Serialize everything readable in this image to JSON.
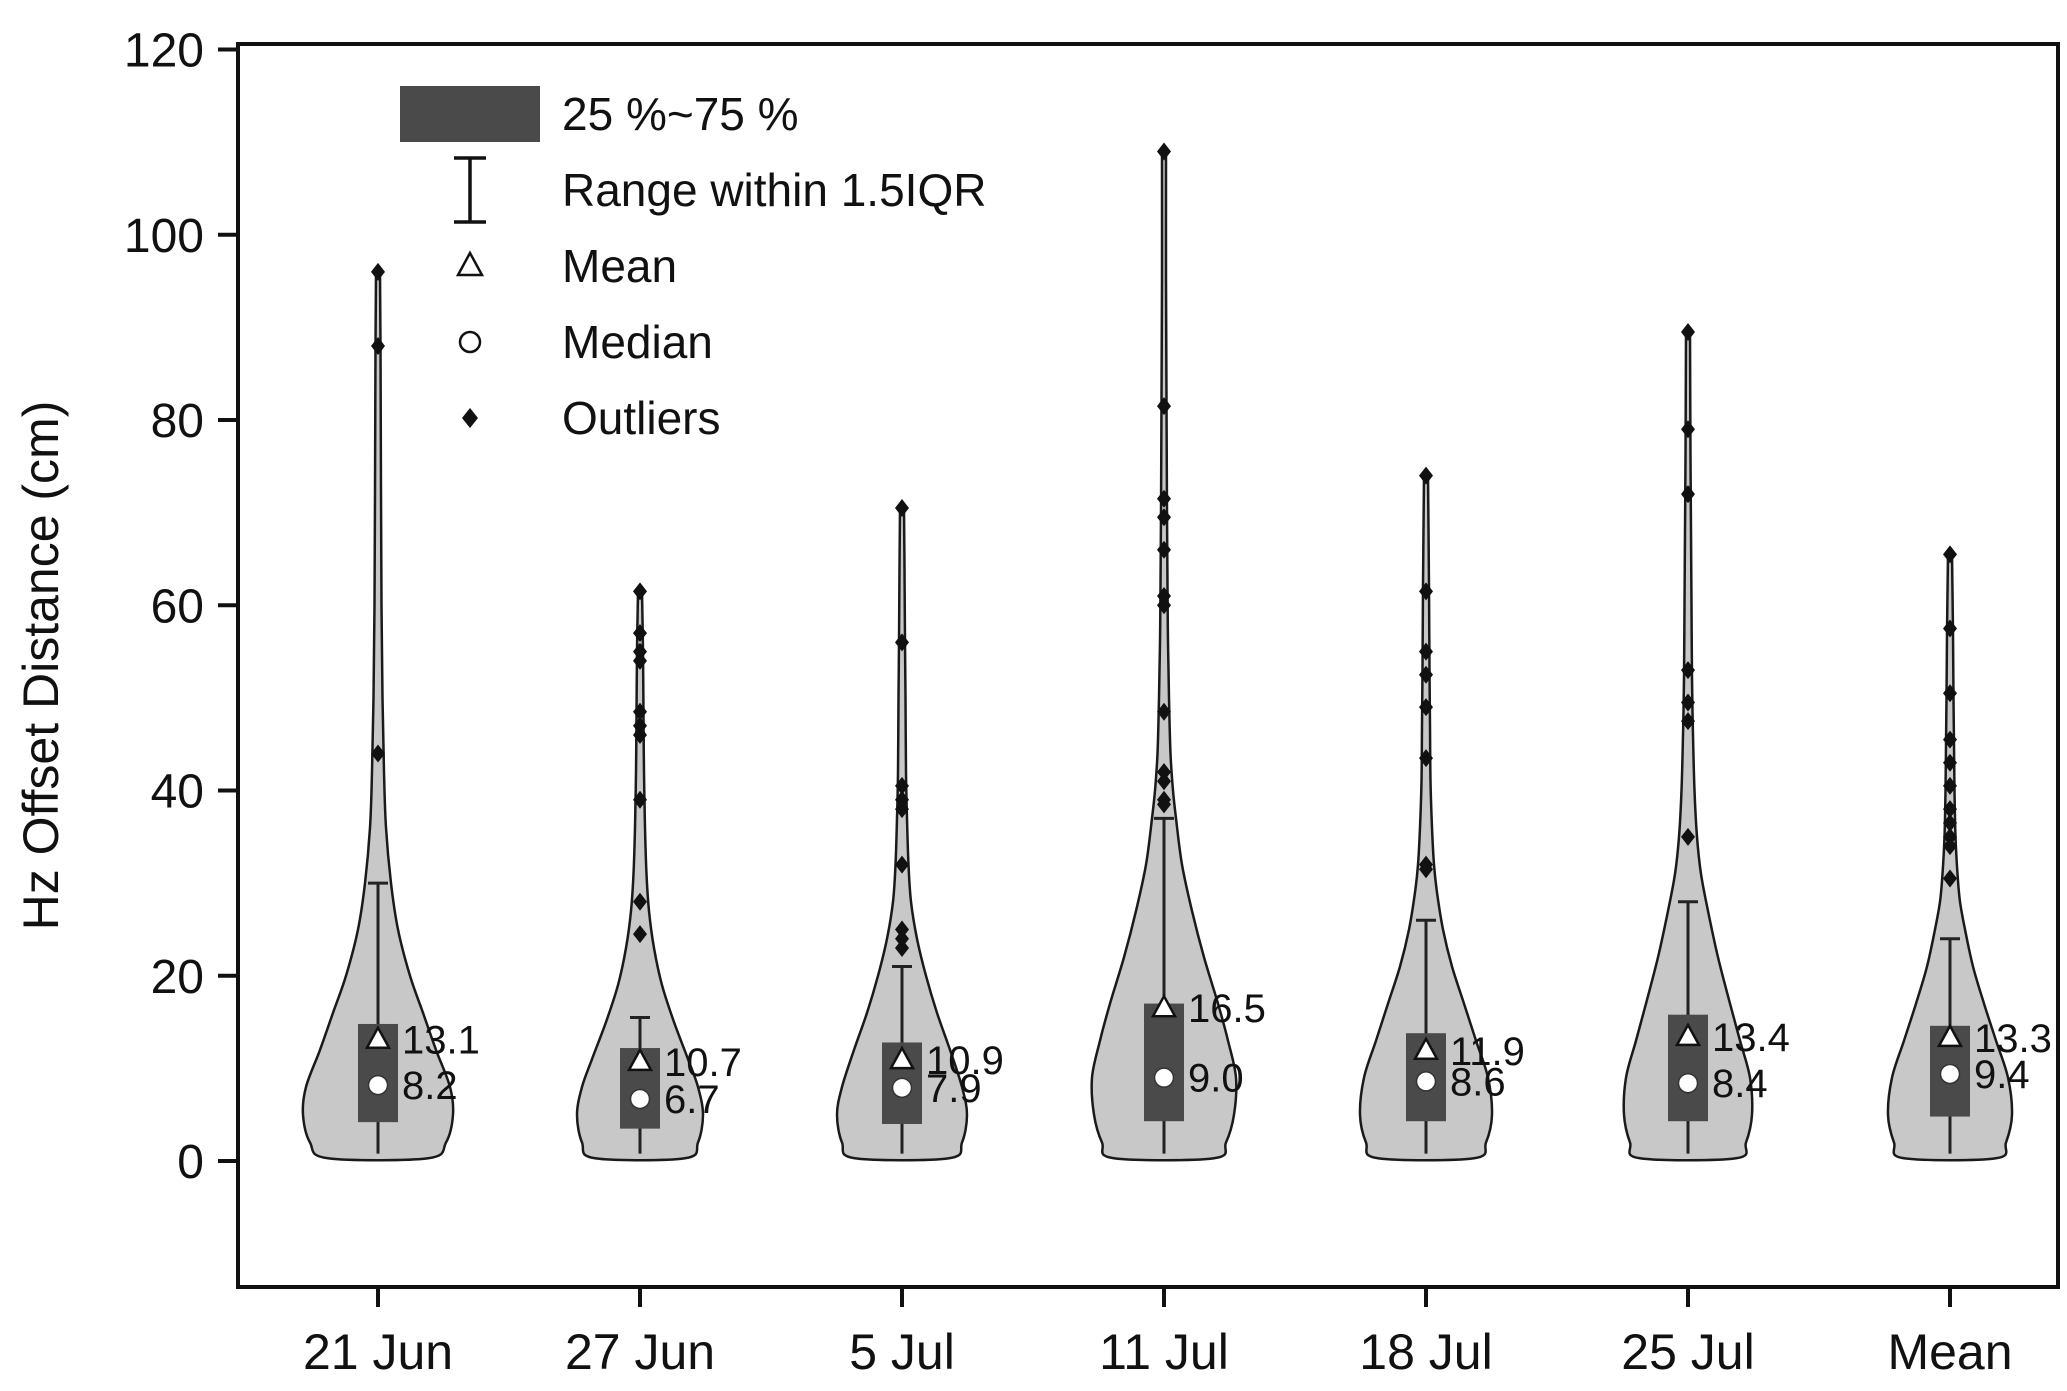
{
  "chart_data": {
    "type": "violin",
    "title": "",
    "ylabel": "Hz Offset Distance (cm)",
    "xlabel": "",
    "y_ticks": [
      0,
      20,
      40,
      60,
      80,
      100,
      120
    ],
    "y_range": [
      -13.6,
      120.6
    ],
    "grid": false,
    "legend_position": "top-left-inside",
    "categories": [
      "21 Jun",
      "27 Jun",
      "5 Jul",
      "11 Jul",
      "18 Jul",
      "25 Jul",
      "Mean"
    ],
    "legend": [
      {
        "glyph": "box",
        "label": "25 %~75 %"
      },
      {
        "glyph": "errorbar",
        "label": "Range within 1.5IQR"
      },
      {
        "glyph": "triangle",
        "label": "Mean"
      },
      {
        "glyph": "circle",
        "label": "Median"
      },
      {
        "glyph": "diamond",
        "label": "Outliers"
      }
    ],
    "colors": {
      "violin_fill": "#c8c8c8",
      "violin_stroke": "#1a1a1a",
      "box_fill": "#4a4a4a",
      "outlier": "#111111",
      "median_fill": "#ffffff",
      "mean_fill": "#ffffff"
    },
    "series": [
      {
        "category": "21 Jun",
        "mean": 13.1,
        "mean_label": "13.1",
        "median": 8.2,
        "median_label": "8.2",
        "q1": 4.2,
        "q3": 14.8,
        "whisker_low": 0.8,
        "whisker_high": 30,
        "outliers": [
          96,
          88,
          44
        ],
        "profile": [
          [
            0.3,
            50
          ],
          [
            2,
            68
          ],
          [
            5,
            75
          ],
          [
            8,
            72
          ],
          [
            12,
            58
          ],
          [
            16,
            45
          ],
          [
            20,
            32
          ],
          [
            25,
            20
          ],
          [
            30,
            13
          ],
          [
            36,
            8
          ],
          [
            42,
            6
          ],
          [
            50,
            4.5
          ],
          [
            60,
            3.5
          ],
          [
            72,
            3
          ],
          [
            88,
            2.5
          ],
          [
            96,
            2
          ]
        ]
      },
      {
        "category": "27 Jun",
        "mean": 10.7,
        "mean_label": "10.7",
        "median": 6.7,
        "median_label": "6.7",
        "q1": 3.5,
        "q3": 12.2,
        "whisker_low": 0.8,
        "whisker_high": 15.5,
        "outliers": [
          61.5,
          57,
          55,
          54,
          48.5,
          47,
          46,
          39,
          28,
          24.5
        ],
        "profile": [
          [
            0.3,
            45
          ],
          [
            2,
            58
          ],
          [
            5,
            63
          ],
          [
            8,
            58
          ],
          [
            11,
            48
          ],
          [
            15,
            34
          ],
          [
            19,
            22
          ],
          [
            23,
            14
          ],
          [
            27,
            9
          ],
          [
            31,
            6.5
          ],
          [
            36,
            5
          ],
          [
            42,
            4
          ],
          [
            48,
            3.5
          ],
          [
            55,
            3
          ],
          [
            61.5,
            2
          ]
        ]
      },
      {
        "category": "5 Jul",
        "mean": 10.9,
        "mean_label": "10.9",
        "median": 7.9,
        "median_label": "7.9",
        "q1": 4.0,
        "q3": 12.8,
        "whisker_low": 0.8,
        "whisker_high": 21,
        "outliers": [
          70.5,
          56,
          40.5,
          39,
          38,
          32,
          25,
          24,
          23
        ],
        "profile": [
          [
            0.3,
            47
          ],
          [
            2,
            60
          ],
          [
            5,
            65
          ],
          [
            8,
            60
          ],
          [
            12,
            48
          ],
          [
            16,
            35
          ],
          [
            20,
            24
          ],
          [
            24,
            15
          ],
          [
            28,
            9
          ],
          [
            32,
            6.5
          ],
          [
            37,
            5
          ],
          [
            42,
            4
          ],
          [
            50,
            3.5
          ],
          [
            56,
            3
          ],
          [
            64,
            2.5
          ],
          [
            70.5,
            2
          ]
        ]
      },
      {
        "category": "11 Jul",
        "mean": 16.5,
        "mean_label": "16.5",
        "median": 9.0,
        "median_label": "9.0",
        "q1": 4.3,
        "q3": 17.0,
        "whisker_low": 0.8,
        "whisker_high": 37,
        "outliers": [
          109,
          81.5,
          71.5,
          69.5,
          66,
          61,
          60,
          48.5,
          42,
          41,
          39,
          38.5
        ],
        "profile": [
          [
            0.3,
            50
          ],
          [
            2,
            62
          ],
          [
            5,
            70
          ],
          [
            9,
            72
          ],
          [
            13,
            64
          ],
          [
            17,
            54
          ],
          [
            22,
            40
          ],
          [
            27,
            28
          ],
          [
            32,
            18
          ],
          [
            37,
            12
          ],
          [
            40,
            9
          ],
          [
            44,
            6.5
          ],
          [
            50,
            5
          ],
          [
            56,
            4
          ],
          [
            62,
            3.5
          ],
          [
            70,
            3
          ],
          [
            82,
            2.5
          ],
          [
            95,
            2
          ],
          [
            109,
            2
          ]
        ]
      },
      {
        "category": "18 Jul",
        "mean": 11.9,
        "mean_label": "11.9",
        "median": 8.6,
        "median_label": "8.6",
        "q1": 4.3,
        "q3": 13.8,
        "whisker_low": 0.8,
        "whisker_high": 26,
        "outliers": [
          74,
          61.5,
          55,
          52.5,
          49,
          43.5,
          32,
          31.5
        ],
        "profile": [
          [
            0.3,
            48
          ],
          [
            2,
            60
          ],
          [
            5,
            66
          ],
          [
            9,
            62
          ],
          [
            13,
            50
          ],
          [
            17,
            38
          ],
          [
            21,
            26
          ],
          [
            25,
            17
          ],
          [
            29,
            11
          ],
          [
            32,
            8
          ],
          [
            36,
            6
          ],
          [
            41,
            4.5
          ],
          [
            47,
            4
          ],
          [
            53,
            3.5
          ],
          [
            62,
            3
          ],
          [
            74,
            2
          ]
        ]
      },
      {
        "category": "25 Jul",
        "mean": 13.4,
        "mean_label": "13.4",
        "median": 8.4,
        "median_label": "8.4",
        "q1": 4.3,
        "q3": 15.8,
        "whisker_low": 0.8,
        "whisker_high": 28,
        "outliers": [
          89.5,
          79,
          72,
          53,
          49.5,
          47.5,
          35
        ],
        "profile": [
          [
            0.3,
            48
          ],
          [
            2,
            58
          ],
          [
            5,
            64
          ],
          [
            9,
            62
          ],
          [
            13,
            52
          ],
          [
            17,
            42
          ],
          [
            22,
            30
          ],
          [
            27,
            20
          ],
          [
            31,
            13
          ],
          [
            35,
            9
          ],
          [
            40,
            6.5
          ],
          [
            46,
            5
          ],
          [
            52,
            4
          ],
          [
            60,
            3.5
          ],
          [
            68,
            3
          ],
          [
            76,
            2.5
          ],
          [
            89.5,
            2
          ]
        ]
      },
      {
        "category": "Mean",
        "mean": 13.3,
        "mean_label": "13.3",
        "median": 9.4,
        "median_label": "9.4",
        "q1": 4.8,
        "q3": 14.6,
        "whisker_low": 0.8,
        "whisker_high": 24,
        "outliers": [
          65.5,
          57.5,
          50.5,
          45.5,
          43,
          40.5,
          38,
          36.5,
          35,
          34,
          30.5
        ],
        "profile": [
          [
            0.3,
            46
          ],
          [
            2,
            56
          ],
          [
            5,
            62
          ],
          [
            9,
            58
          ],
          [
            13,
            46
          ],
          [
            17,
            34
          ],
          [
            21,
            23
          ],
          [
            25,
            15
          ],
          [
            28,
            10
          ],
          [
            31,
            7.5
          ],
          [
            35,
            5.5
          ],
          [
            40,
            4.5
          ],
          [
            45,
            4
          ],
          [
            50,
            3.5
          ],
          [
            57,
            3
          ],
          [
            65.5,
            2
          ]
        ]
      }
    ]
  }
}
